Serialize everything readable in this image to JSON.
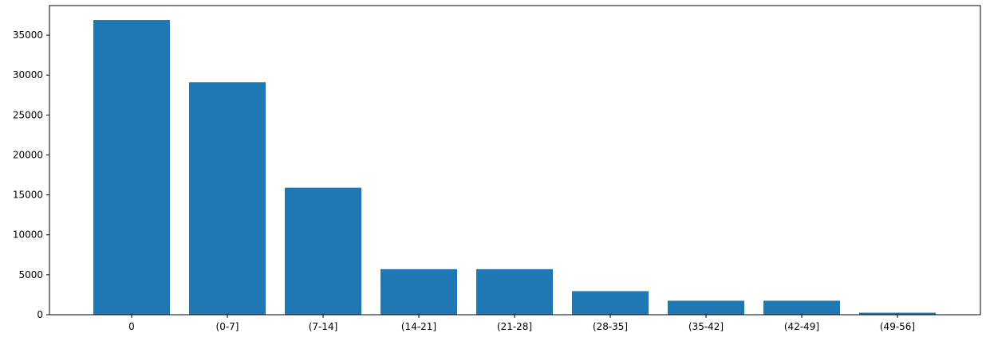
{
  "chart_data": {
    "type": "bar",
    "categories": [
      "0",
      "(0-7]",
      "(7-14]",
      "(14-21]",
      "(21-28]",
      "(28-35]",
      "(35-42]",
      "(42-49]",
      "(49-56]"
    ],
    "values": [
      36900,
      29100,
      15900,
      5700,
      5700,
      2950,
      1750,
      1750,
      250
    ],
    "title": "",
    "xlabel": "",
    "ylabel": "",
    "ylim": [
      0,
      38700
    ],
    "yticks": [
      0,
      5000,
      10000,
      15000,
      20000,
      25000,
      30000,
      35000
    ],
    "bar_color": "#1f77b4",
    "grid": false,
    "legend": "none"
  }
}
